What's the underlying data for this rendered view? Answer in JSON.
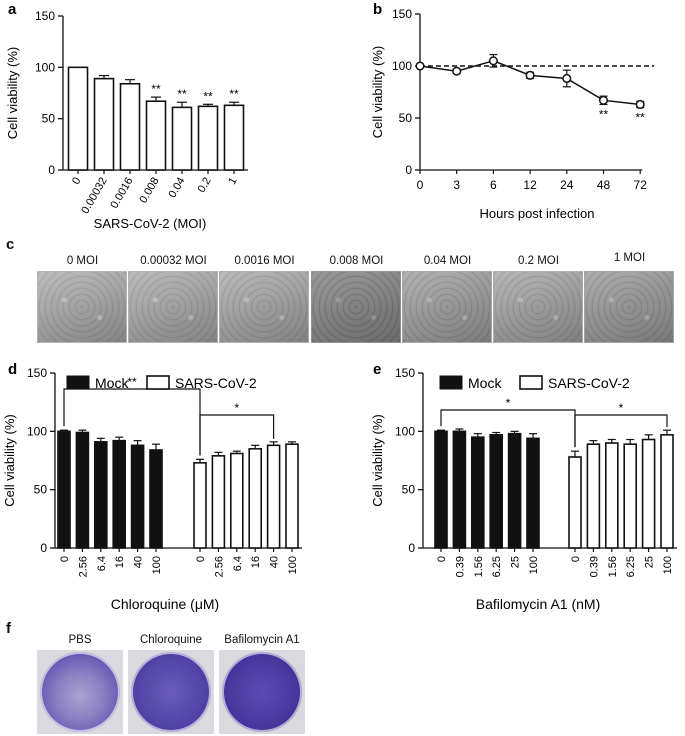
{
  "figure": {
    "panel_letters": [
      "a",
      "b",
      "c",
      "d",
      "e",
      "f"
    ],
    "panel_c_labels": [
      "0 MOI",
      "0.00032 MOI",
      "0.0016 MOI",
      "0.008 MOI",
      "0.04 MOI",
      "0.2 MOI",
      "1 MOI"
    ],
    "panel_f_labels": [
      "PBS",
      "Chloroquine",
      "Bafilomycin A1"
    ]
  },
  "colors": {
    "ink": "#111111",
    "micro_light": "#c6c6c6",
    "micro_dark": "#8a8a8a",
    "crystal_violet": "#4a3aa0",
    "dish_rim": "#d9d9de"
  },
  "chart_data": [
    {
      "id": "a",
      "type": "bar",
      "categories": [
        "0",
        "0.00032",
        "0.0016",
        "0.008",
        "0.04",
        "0.2",
        "1"
      ],
      "values": [
        100,
        89,
        84,
        67,
        61,
        62,
        63
      ],
      "errors": [
        0,
        3,
        4,
        4,
        5,
        2,
        3
      ],
      "annotations": [
        "",
        "",
        "",
        "**",
        "**",
        "**",
        "**"
      ],
      "title": "",
      "xlabel": "SARS-CoV-2 (MOI)",
      "ylabel": "Cell viability (%)",
      "ylim": [
        0,
        150
      ],
      "yticks": [
        0,
        50,
        100,
        150
      ]
    },
    {
      "id": "b",
      "type": "line",
      "x": [
        "0",
        "3",
        "6",
        "12",
        "24",
        "48",
        "72"
      ],
      "values": [
        100,
        95,
        105,
        91,
        88,
        67,
        63
      ],
      "errors": [
        1,
        2,
        6,
        3,
        8,
        4,
        3
      ],
      "annotations": [
        "",
        "",
        "",
        "",
        "",
        "**",
        "**"
      ],
      "reference_line": 100,
      "title": "",
      "xlabel": "Hours post infection",
      "ylabel": "Cell viability (%)",
      "ylim": [
        0,
        150
      ],
      "yticks": [
        0,
        50,
        100,
        150
      ]
    },
    {
      "id": "d",
      "type": "bar",
      "categories": [
        "0",
        "2.56",
        "6.4",
        "16",
        "40",
        "100"
      ],
      "series": [
        {
          "name": "Mock",
          "values": [
            100,
            99,
            91,
            92,
            88,
            84
          ],
          "errors": [
            1,
            2,
            3,
            3,
            4,
            5
          ]
        },
        {
          "name": "SARS-CoV-2",
          "values": [
            73,
            79,
            81,
            85,
            88,
            89
          ],
          "errors": [
            3,
            3,
            2,
            3,
            3,
            2
          ]
        }
      ],
      "brackets": [
        {
          "from": "Mock 0",
          "to": "SARS-CoV-2 0",
          "label": "**"
        },
        {
          "from": "SARS-CoV-2 0",
          "to": "SARS-CoV-2 40",
          "label": "*"
        }
      ],
      "title": "",
      "xlabel": "Chloroquine (μM)",
      "ylabel": "Cell viability (%)",
      "ylim": [
        0,
        150
      ],
      "yticks": [
        0,
        50,
        100,
        150
      ],
      "legend": "top"
    },
    {
      "id": "e",
      "type": "bar",
      "categories": [
        "0",
        "0.39",
        "1.56",
        "6.25",
        "25",
        "100"
      ],
      "series": [
        {
          "name": "Mock",
          "values": [
            100,
            100,
            95,
            97,
            98,
            94
          ],
          "errors": [
            1,
            2,
            3,
            2,
            2,
            4
          ]
        },
        {
          "name": "SARS-CoV-2",
          "values": [
            78,
            89,
            90,
            89,
            93,
            97
          ],
          "errors": [
            5,
            3,
            3,
            4,
            4,
            4
          ]
        }
      ],
      "brackets": [
        {
          "from": "Mock 0",
          "to": "SARS-CoV-2 0",
          "label": "*"
        },
        {
          "from": "SARS-CoV-2 0",
          "to": "SARS-CoV-2 100",
          "label": "*"
        }
      ],
      "title": "",
      "xlabel": "Bafilomycin A1 (nM)",
      "ylabel": "Cell viability (%)",
      "ylim": [
        0,
        150
      ],
      "yticks": [
        0,
        50,
        100,
        150
      ],
      "legend": "top"
    }
  ]
}
